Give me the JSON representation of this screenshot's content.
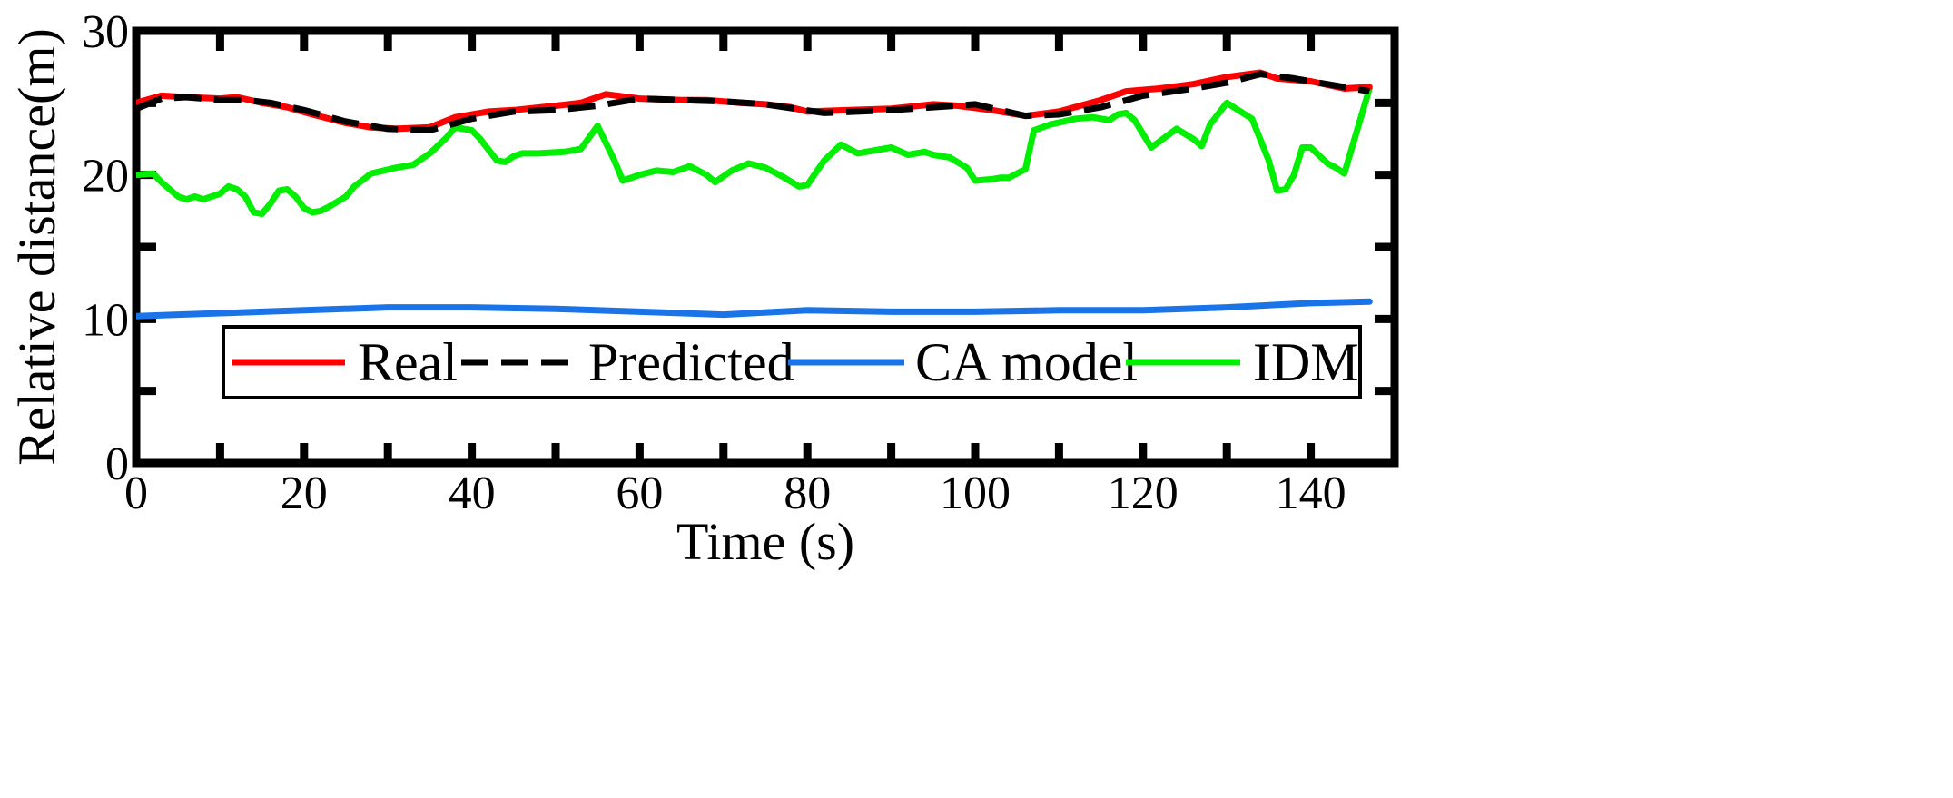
{
  "chart_data": {
    "type": "line",
    "title": "",
    "xlabel": "Time (s)",
    "ylabel": "Relative distance(m)",
    "xlim": [
      0,
      150
    ],
    "ylim": [
      0,
      30
    ],
    "xticks": [
      0,
      20,
      40,
      60,
      80,
      100,
      120,
      140
    ],
    "yticks": [
      0,
      10,
      20,
      30
    ],
    "grid": false,
    "legend_position": "bottom-right",
    "series": [
      {
        "name": "Real",
        "color": "#ff0000",
        "style": "solid",
        "x": [
          0,
          3,
          6,
          10,
          12,
          15,
          18,
          21,
          25,
          28,
          31,
          35,
          38,
          42,
          45,
          50,
          53,
          56,
          60,
          65,
          68,
          72,
          75,
          78,
          80,
          85,
          90,
          95,
          98,
          102,
          106,
          110,
          115,
          118,
          122,
          126,
          130,
          134,
          136,
          140,
          144,
          147
        ],
        "y": [
          25.0,
          25.5,
          25.4,
          25.3,
          25.4,
          25.0,
          24.7,
          24.2,
          23.6,
          23.3,
          23.2,
          23.3,
          24.0,
          24.4,
          24.5,
          24.8,
          25.0,
          25.6,
          25.3,
          25.2,
          25.2,
          25.0,
          24.9,
          24.7,
          24.4,
          24.5,
          24.6,
          24.9,
          24.8,
          24.5,
          24.1,
          24.4,
          25.2,
          25.8,
          26.0,
          26.3,
          26.8,
          27.1,
          26.7,
          26.5,
          26.0,
          26.1
        ]
      },
      {
        "name": "Predicted",
        "color": "#000000",
        "style": "dashed",
        "x": [
          0,
          3,
          6,
          10,
          13,
          16,
          20,
          25,
          30,
          35,
          40,
          45,
          50,
          55,
          60,
          65,
          70,
          75,
          82,
          90,
          100,
          106,
          110,
          115,
          120,
          126,
          130,
          134,
          138,
          143,
          147
        ],
        "y": [
          24.6,
          25.3,
          25.4,
          25.2,
          25.2,
          25.0,
          24.5,
          23.7,
          23.2,
          23.1,
          23.9,
          24.4,
          24.5,
          24.8,
          25.3,
          25.2,
          25.1,
          24.9,
          24.3,
          24.5,
          24.9,
          24.1,
          24.2,
          24.7,
          25.5,
          26.0,
          26.4,
          27.0,
          26.7,
          26.2,
          25.8
        ]
      },
      {
        "name": "CA model",
        "color": "#1a74e8",
        "style": "solid",
        "x": [
          0,
          10,
          20,
          30,
          40,
          50,
          60,
          70,
          80,
          90,
          100,
          110,
          120,
          130,
          140,
          147
        ],
        "y": [
          10.2,
          10.4,
          10.6,
          10.8,
          10.8,
          10.7,
          10.5,
          10.3,
          10.6,
          10.5,
          10.5,
          10.6,
          10.6,
          10.8,
          11.1,
          11.2
        ]
      },
      {
        "name": "IDM",
        "color": "#00ee00",
        "style": "solid",
        "x": [
          0,
          2,
          3,
          5,
          6,
          7,
          8,
          10,
          11,
          12,
          13,
          14,
          15,
          16,
          17,
          18,
          19,
          20,
          21,
          22,
          23,
          25,
          26,
          28,
          31,
          33,
          35,
          37,
          38,
          40,
          41,
          43,
          44,
          45,
          46,
          48,
          51,
          53,
          55,
          57,
          58,
          60,
          62,
          64,
          66,
          68,
          69,
          71,
          73,
          75,
          77,
          79,
          80,
          82,
          84,
          86,
          88,
          90,
          92,
          94,
          95,
          97,
          99,
          100,
          102,
          103,
          104,
          106,
          107,
          109,
          112,
          114,
          116,
          117,
          118,
          119,
          121,
          124,
          126,
          127,
          128,
          130,
          133,
          135,
          136,
          137,
          138,
          139,
          140,
          142,
          143,
          144,
          147
        ],
        "y": [
          20.0,
          20.1,
          19.5,
          18.5,
          18.3,
          18.5,
          18.3,
          18.7,
          19.2,
          19.0,
          18.5,
          17.4,
          17.3,
          18.0,
          18.9,
          19.0,
          18.5,
          17.7,
          17.4,
          17.5,
          17.8,
          18.5,
          19.2,
          20.1,
          20.5,
          20.7,
          21.5,
          22.6,
          23.3,
          23.1,
          22.5,
          21.0,
          20.9,
          21.3,
          21.5,
          21.5,
          21.6,
          21.8,
          23.4,
          21.0,
          19.6,
          20.0,
          20.3,
          20.2,
          20.6,
          20.0,
          19.5,
          20.3,
          20.8,
          20.5,
          19.9,
          19.2,
          19.3,
          21.0,
          22.1,
          21.5,
          21.7,
          21.9,
          21.4,
          21.6,
          21.4,
          21.2,
          20.5,
          19.6,
          19.7,
          19.8,
          19.8,
          20.4,
          23.1,
          23.5,
          23.9,
          24.0,
          23.8,
          24.2,
          24.3,
          23.8,
          21.9,
          23.2,
          22.5,
          22.0,
          23.5,
          25.0,
          23.9,
          21.0,
          18.9,
          19.0,
          20.0,
          21.9,
          21.9,
          20.8,
          20.5,
          20.1,
          26.0
        ]
      }
    ]
  }
}
